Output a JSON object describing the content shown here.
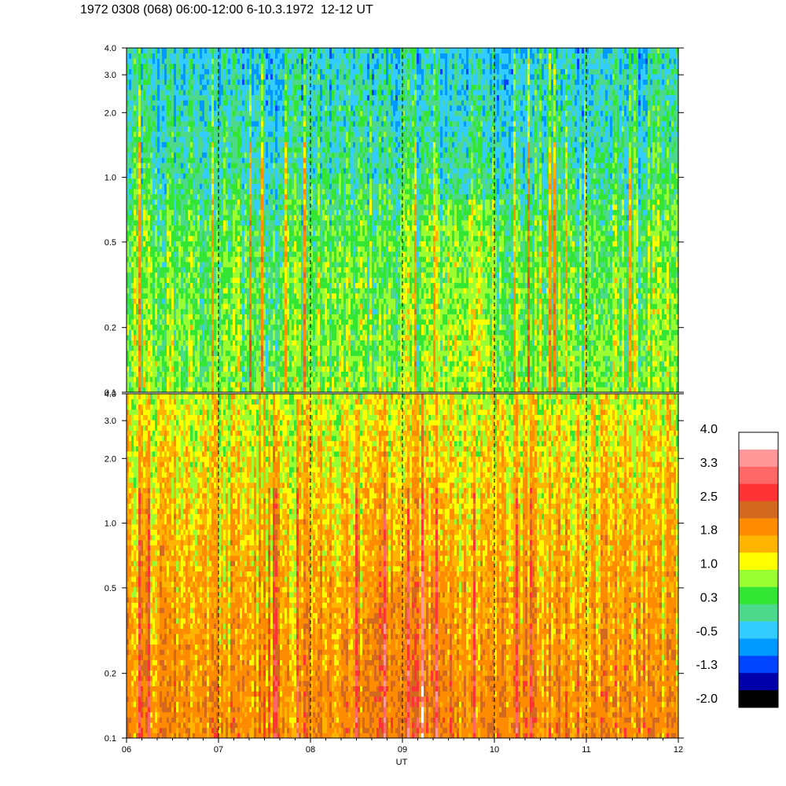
{
  "title": "1972 0308 (068) 06:00-12:00 6-10.3.1972  12-12 UT",
  "chart_data": [
    {
      "type": "heatmap",
      "panel": "upper",
      "x_ticks": [
        "06",
        "07",
        "08",
        "09",
        "10",
        "11",
        "12"
      ],
      "y_ticks": [
        "0.1",
        "0.2",
        "0.5",
        "1.0",
        "2.0",
        "3.0",
        "4.0"
      ],
      "y_values": [
        0.1,
        0.2,
        0.5,
        1.0,
        2.0,
        3.0,
        4.0
      ],
      "y_scale": "log",
      "ylim": [
        0.1,
        4.0
      ],
      "xlim": [
        6,
        12
      ],
      "hour_marker_lines": [
        7,
        8,
        9,
        10,
        11
      ],
      "base_level_by_frequency": {
        "0.1": 0.55,
        "0.5": 0.35,
        "1.0": 0.0,
        "4.0": -0.35
      },
      "dominant_colors": [
        "green",
        "yellow-green",
        "teal",
        "light blue"
      ]
    },
    {
      "type": "heatmap",
      "panel": "lower",
      "x_ticks": [
        "06",
        "07",
        "08",
        "09",
        "10",
        "11",
        "12"
      ],
      "y_ticks": [
        "0.1",
        "0.2",
        "0.5",
        "1.0",
        "2.0",
        "3.0",
        "4.0"
      ],
      "y_values": [
        0.1,
        0.2,
        0.5,
        1.0,
        2.0,
        3.0,
        4.0
      ],
      "y_scale": "log",
      "ylim": [
        0.1,
        4.0
      ],
      "xlim": [
        6,
        12
      ],
      "xlabel": "UT",
      "hour_marker_lines": [
        7,
        8,
        9,
        10,
        11
      ],
      "base_level_by_frequency": {
        "0.1": 1.9,
        "0.5": 1.5,
        "1.0": 1.35,
        "4.0": 0.9
      },
      "dominant_colors": [
        "orange",
        "amber",
        "yellow",
        "red streaks"
      ]
    }
  ],
  "colorbar": {
    "labels": [
      "4.0",
      "3.3",
      "2.5",
      "1.8",
      "1.0",
      "0.3",
      "-0.5",
      "-1.3",
      "-2.0"
    ],
    "colors": [
      "#ffffff",
      "#ff9999",
      "#ff6666",
      "#ff3333",
      "#d2691e",
      "#ff8c00",
      "#ffb400",
      "#ffff00",
      "#99ff33",
      "#33e633",
      "#4dd98c",
      "#33ccff",
      "#0099ff",
      "#0044ff",
      "#0000aa",
      "#000000"
    ]
  }
}
